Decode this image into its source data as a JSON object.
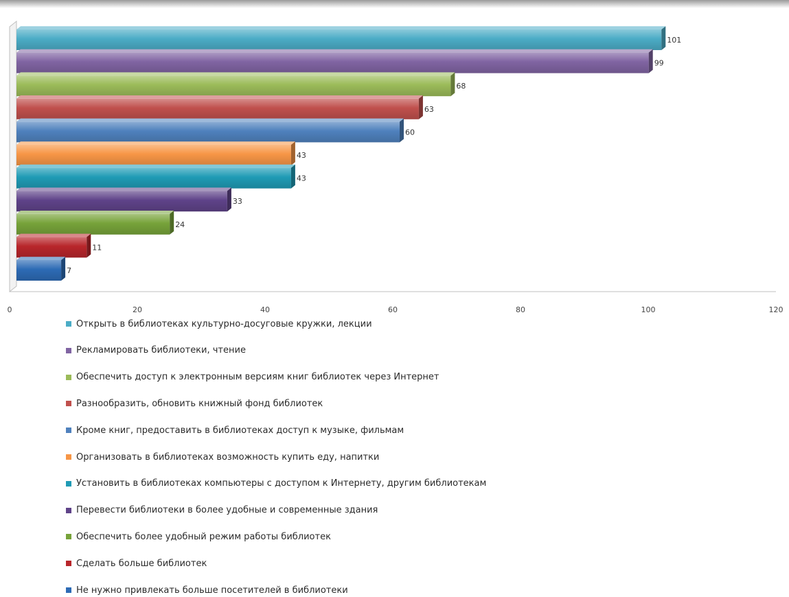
{
  "chart_data": {
    "type": "bar",
    "orientation": "horizontal",
    "style": "3d",
    "title": "",
    "xlabel": "",
    "ylabel": "",
    "xlim": [
      0,
      120
    ],
    "x_ticks": [
      "0",
      "20",
      "40",
      "60",
      "80",
      "100",
      "120"
    ],
    "grid": false,
    "legend_position": "bottom",
    "series": [
      {
        "name": "Открыть в библиотеках культурно-досуговые кружки, лекции",
        "value": 101,
        "label": "101",
        "color": "#4bacc6"
      },
      {
        "name": "Рекламировать библиотеки, чтение",
        "value": 99,
        "label": "99",
        "color": "#8064a2"
      },
      {
        "name": "Обеспечить доступ к электронным версиям книг библиотек через Интернет",
        "value": 68,
        "label": "68",
        "color": "#9bbb59"
      },
      {
        "name": "Разнообразить, обновить книжный фонд библиотек",
        "value": 63,
        "label": "63",
        "color": "#c0504d"
      },
      {
        "name": "Кроме книг, предоставить в библиотеках доступ к музыке, фильмам",
        "value": 60,
        "label": "60",
        "color": "#4f81bd"
      },
      {
        "name": "Организовать в библиотеках возможность купить еду, напитки",
        "value": 43,
        "label": "43",
        "color": "#f79646"
      },
      {
        "name": "Установить в библиотеках компьютеры с доступом к Интернету, другим библиотекам",
        "value": 43,
        "label": "43",
        "color": "#1f9bb5"
      },
      {
        "name": "Перевести библиотеки в более удобные и современные здания",
        "value": 33,
        "label": "33",
        "color": "#5f4389"
      },
      {
        "name": "Обеспечить более удобный режим работы библиотек",
        "value": 24,
        "label": "24",
        "color": "#77a33a"
      },
      {
        "name": "Сделать больше библиотек",
        "value": 11,
        "label": "11",
        "color": "#b8262b"
      },
      {
        "name": "Не нужно привлекать больше посетителей в библиотеки",
        "value": 7,
        "label": "7",
        "color": "#2d6bb5"
      }
    ]
  }
}
